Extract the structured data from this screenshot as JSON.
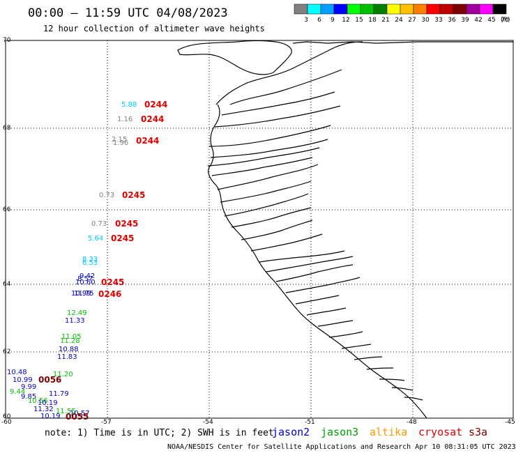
{
  "header": {
    "title": "00:00 – 11:59 UTC 04/08/2023",
    "subtitle": "12 hour collection of altimeter wave heights"
  },
  "color_scale": {
    "ticks": [
      "3",
      "6",
      "9",
      "12",
      "15",
      "18",
      "21",
      "24",
      "27",
      "30",
      "33",
      "36",
      "39",
      "42",
      "45",
      "70"
    ],
    "unit": "(ft)",
    "colors": [
      "#808080",
      "#00ffff",
      "#00a0ff",
      "#0000ff",
      "#00ff00",
      "#00c000",
      "#008000",
      "#ffff00",
      "#ffc000",
      "#ff8000",
      "#ff0000",
      "#c00000",
      "#800000",
      "#a000a0",
      "#ff00ff",
      "#000000"
    ]
  },
  "axes": {
    "lat_labels": [
      "70",
      "68",
      "66",
      "64",
      "62",
      "60"
    ],
    "lon_labels": [
      "-60",
      "-57",
      "-54",
      "-51",
      "-48",
      "-45"
    ]
  },
  "observations": [
    {
      "text": "5.88",
      "color": "#00c8ff"
    },
    {
      "text": "1.16",
      "color": "#808080"
    },
    {
      "text": "2.15",
      "color": "#808080"
    },
    {
      "text": "1.96",
      "color": "#808080"
    },
    {
      "text": "0.73",
      "color": "#808080"
    },
    {
      "text": "0.73",
      "color": "#808080"
    },
    {
      "text": "5.64",
      "color": "#00c8ff"
    },
    {
      "text": "8.33",
      "color": "#00c8ff"
    },
    {
      "text": "6.53",
      "color": "#00c8ff"
    },
    {
      "text": "9.42",
      "color": "#0000cc"
    },
    {
      "text": "8.57",
      "color": "#0000cc"
    },
    {
      "text": "10.60",
      "color": "#0000cc"
    },
    {
      "text": "10.99",
      "color": "#0000cc"
    },
    {
      "text": "11.75",
      "color": "#0000cc"
    },
    {
      "text": "12.49",
      "color": "#00c000"
    },
    {
      "text": "11.33",
      "color": "#0000cc"
    },
    {
      "text": "11.05",
      "color": "#00c000"
    },
    {
      "text": "11.28",
      "color": "#00c000"
    },
    {
      "text": "10.88",
      "color": "#0000cc"
    },
    {
      "text": "11.83",
      "color": "#0000cc"
    },
    {
      "text": "10.48",
      "color": "#0000cc"
    },
    {
      "text": "11.20",
      "color": "#00c000"
    },
    {
      "text": "10.99",
      "color": "#0000cc"
    },
    {
      "text": "9.99",
      "color": "#0000cc"
    },
    {
      "text": "9.44",
      "color": "#00c000"
    },
    {
      "text": "9.85",
      "color": "#0000cc"
    },
    {
      "text": "11.79",
      "color": "#0000cc"
    },
    {
      "text": "10.56",
      "color": "#00c000"
    },
    {
      "text": "10.19",
      "color": "#0000cc"
    },
    {
      "text": "11.32",
      "color": "#0000cc"
    },
    {
      "text": "11.55",
      "color": "#00c000"
    },
    {
      "text": "10.57",
      "color": "#0000cc"
    },
    {
      "text": "10.19",
      "color": "#0000cc"
    }
  ],
  "passes": [
    {
      "text": "0244",
      "color": "#e00000"
    },
    {
      "text": "0244",
      "color": "#e00000"
    },
    {
      "text": "0244",
      "color": "#e00000"
    },
    {
      "text": "0245",
      "color": "#e00000"
    },
    {
      "text": "0245",
      "color": "#e00000"
    },
    {
      "text": "0245",
      "color": "#e00000"
    },
    {
      "text": "0245",
      "color": "#e00000"
    },
    {
      "text": "0246",
      "color": "#e00000"
    },
    {
      "text": "0056",
      "color": "#800000"
    },
    {
      "text": "0055",
      "color": "#800000"
    }
  ],
  "footer": {
    "note": "note: 1) Time is in UTC; 2) SWH is in feet",
    "credit": "NOAA/NESDIS Center for Satellite Applications and Research   Apr 10 08:31:05 UTC 2023",
    "satellites": [
      {
        "name": "jason2",
        "color": "#0000cc"
      },
      {
        "name": "jason3",
        "color": "#00a000"
      },
      {
        "name": "altika",
        "color": "#ff9900"
      },
      {
        "name": "cryosat",
        "color": "#e00000"
      },
      {
        "name": "s3a",
        "color": "#800000"
      }
    ]
  }
}
